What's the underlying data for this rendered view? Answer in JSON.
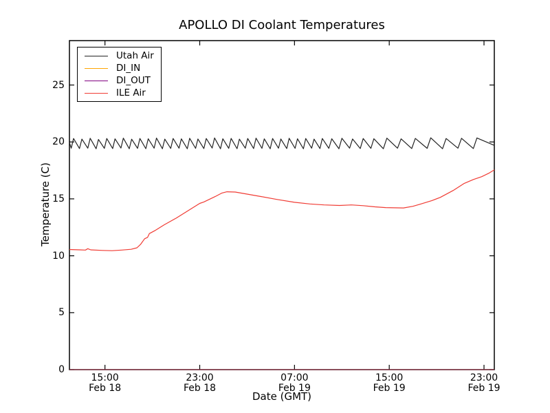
{
  "chart_data": {
    "type": "line",
    "title": "APOLLO DI Coolant Temperatures",
    "xlabel": "Date (GMT)",
    "ylabel": "Temperature (C)",
    "x_unit": "hours since Feb 18 12:00 GMT",
    "xlim": [
      0,
      35.87
    ],
    "ylim": [
      0,
      28.9
    ],
    "grid": false,
    "legend_position": "upper left",
    "axis_color": "#000000",
    "y_ticks": [
      0,
      5,
      10,
      15,
      20,
      25
    ],
    "x_ticks": [
      {
        "t": 3,
        "time": "15:00",
        "date": "Feb 18"
      },
      {
        "t": 11,
        "time": "23:00",
        "date": "Feb 18"
      },
      {
        "t": 19,
        "time": "07:00",
        "date": "Feb 19"
      },
      {
        "t": 27,
        "time": "15:00",
        "date": "Feb 19"
      },
      {
        "t": 35,
        "time": "23:00",
        "date": "Feb 19"
      }
    ],
    "series": [
      {
        "name": "Utah Air",
        "color": "#222222",
        "points": [
          [
            0,
            19.95
          ],
          [
            0.15,
            19.45
          ],
          [
            0.35,
            20.3
          ],
          [
            0.85,
            19.42
          ],
          [
            1.05,
            20.25
          ],
          [
            1.55,
            19.45
          ],
          [
            1.75,
            20.32
          ],
          [
            2.25,
            19.4
          ],
          [
            2.45,
            20.22
          ],
          [
            2.95,
            19.44
          ],
          [
            3.15,
            20.3
          ],
          [
            3.65,
            19.42
          ],
          [
            3.85,
            20.27
          ],
          [
            4.35,
            19.46
          ],
          [
            4.55,
            20.33
          ],
          [
            5.05,
            19.4
          ],
          [
            5.25,
            20.24
          ],
          [
            5.75,
            19.44
          ],
          [
            5.95,
            20.3
          ],
          [
            6.45,
            19.41
          ],
          [
            6.65,
            20.28
          ],
          [
            7.15,
            19.45
          ],
          [
            7.35,
            20.34
          ],
          [
            7.85,
            19.4
          ],
          [
            8.05,
            20.25
          ],
          [
            8.55,
            19.43
          ],
          [
            8.75,
            20.3
          ],
          [
            9.25,
            19.45
          ],
          [
            9.45,
            20.27
          ],
          [
            9.95,
            19.4
          ],
          [
            10.15,
            20.32
          ],
          [
            10.65,
            19.44
          ],
          [
            10.85,
            20.26
          ],
          [
            11.35,
            19.42
          ],
          [
            11.55,
            20.3
          ],
          [
            12.05,
            19.46
          ],
          [
            12.25,
            20.35
          ],
          [
            12.75,
            19.4
          ],
          [
            12.95,
            20.28
          ],
          [
            13.45,
            19.44
          ],
          [
            13.65,
            20.31
          ],
          [
            14.15,
            19.41
          ],
          [
            14.35,
            20.25
          ],
          [
            14.85,
            19.45
          ],
          [
            15.05,
            20.3
          ],
          [
            15.55,
            19.42
          ],
          [
            15.75,
            20.33
          ],
          [
            16.25,
            19.44
          ],
          [
            16.45,
            20.27
          ],
          [
            16.95,
            19.4
          ],
          [
            17.15,
            20.3
          ],
          [
            17.65,
            19.45
          ],
          [
            17.85,
            20.26
          ],
          [
            18.35,
            19.42
          ],
          [
            18.55,
            20.32
          ],
          [
            19.05,
            19.44
          ],
          [
            19.25,
            20.28
          ],
          [
            19.75,
            19.4
          ],
          [
            19.95,
            20.3
          ],
          [
            20.45,
            19.45
          ],
          [
            20.65,
            20.25
          ],
          [
            21.15,
            19.42
          ],
          [
            21.35,
            20.3
          ],
          [
            21.9,
            19.44
          ],
          [
            22.15,
            20.28
          ],
          [
            22.75,
            19.4
          ],
          [
            23.0,
            20.32
          ],
          [
            23.65,
            19.45
          ],
          [
            23.9,
            20.26
          ],
          [
            24.55,
            19.42
          ],
          [
            24.8,
            20.3
          ],
          [
            25.45,
            19.44
          ],
          [
            25.7,
            20.28
          ],
          [
            26.5,
            19.4
          ],
          [
            26.8,
            20.33
          ],
          [
            27.7,
            19.45
          ],
          [
            28.0,
            20.27
          ],
          [
            28.9,
            19.42
          ],
          [
            29.2,
            20.31
          ],
          [
            30.2,
            19.44
          ],
          [
            30.5,
            20.36
          ],
          [
            31.5,
            19.4
          ],
          [
            31.8,
            20.3
          ],
          [
            32.8,
            19.45
          ],
          [
            33.1,
            20.32
          ],
          [
            34.1,
            19.42
          ],
          [
            34.4,
            20.35
          ],
          [
            35.87,
            19.7
          ]
        ]
      },
      {
        "name": "DI_IN",
        "color": "#ffa500",
        "points": [
          [
            0,
            0
          ],
          [
            35.87,
            0
          ]
        ]
      },
      {
        "name": "DI_OUT",
        "color": "#800080",
        "points": [
          [
            0,
            0
          ],
          [
            35.87,
            0
          ]
        ]
      },
      {
        "name": "ILE Air",
        "color": "#f03b33",
        "points": [
          [
            0,
            10.55
          ],
          [
            0.9,
            10.52
          ],
          [
            1.35,
            10.5
          ],
          [
            1.55,
            10.62
          ],
          [
            1.8,
            10.52
          ],
          [
            2.8,
            10.47
          ],
          [
            3.6,
            10.45
          ],
          [
            4.4,
            10.5
          ],
          [
            5.2,
            10.57
          ],
          [
            5.7,
            10.7
          ],
          [
            6.0,
            11.0
          ],
          [
            6.35,
            11.5
          ],
          [
            6.6,
            11.62
          ],
          [
            6.75,
            11.95
          ],
          [
            7.2,
            12.2
          ],
          [
            8.0,
            12.72
          ],
          [
            9.0,
            13.3
          ],
          [
            10.0,
            13.95
          ],
          [
            11.0,
            14.6
          ],
          [
            11.35,
            14.73
          ],
          [
            12.3,
            15.2
          ],
          [
            12.85,
            15.5
          ],
          [
            13.3,
            15.62
          ],
          [
            14.0,
            15.6
          ],
          [
            15.0,
            15.42
          ],
          [
            16.2,
            15.2
          ],
          [
            17.5,
            14.95
          ],
          [
            19.0,
            14.7
          ],
          [
            20.3,
            14.55
          ],
          [
            21.5,
            14.47
          ],
          [
            22.8,
            14.42
          ],
          [
            23.8,
            14.47
          ],
          [
            24.8,
            14.4
          ],
          [
            25.8,
            14.3
          ],
          [
            26.7,
            14.23
          ],
          [
            28.2,
            14.2
          ],
          [
            29.0,
            14.35
          ],
          [
            29.6,
            14.53
          ],
          [
            30.6,
            14.85
          ],
          [
            31.3,
            15.13
          ],
          [
            32.4,
            15.74
          ],
          [
            33.3,
            16.34
          ],
          [
            34.1,
            16.7
          ],
          [
            34.8,
            16.95
          ],
          [
            35.4,
            17.25
          ],
          [
            35.87,
            17.55
          ]
        ]
      }
    ]
  }
}
